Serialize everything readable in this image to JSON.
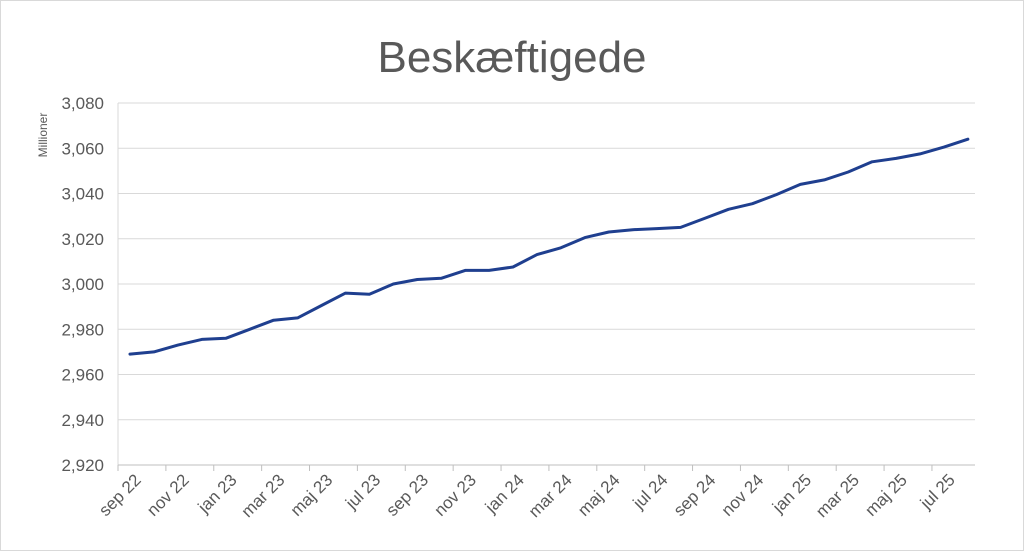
{
  "chart_data": {
    "type": "line",
    "title": "Beskæftigede",
    "ylabel": "Millioner",
    "xlabel": "",
    "ylim": [
      2920,
      3080
    ],
    "yticks": [
      2920,
      2940,
      2960,
      2980,
      3000,
      3020,
      3040,
      3060,
      3080
    ],
    "ytick_labels": [
      "2,920",
      "2,940",
      "2,960",
      "2,980",
      "3,000",
      "3,020",
      "3,040",
      "3,060",
      "3,080"
    ],
    "grid": true,
    "legend": "none",
    "line_color": "#1f3f8f",
    "x_labels": [
      "sep 22",
      "nov 22",
      "jan 23",
      "mar 23",
      "maj 23",
      "jul 23",
      "sep 23",
      "nov 23",
      "jan 24",
      "mar 24",
      "maj 24",
      "jul 24",
      "sep 24",
      "nov 24",
      "jan 25",
      "mar 25",
      "maj 25",
      "jul 25"
    ],
    "x": [
      "sep 22",
      "okt 22",
      "nov 22",
      "dec 22",
      "jan 23",
      "feb 23",
      "mar 23",
      "apr 23",
      "maj 23",
      "jun 23",
      "jul 23",
      "aug 23",
      "sep 23",
      "okt 23",
      "nov 23",
      "dec 23",
      "jan 24",
      "feb 24",
      "mar 24",
      "apr 24",
      "maj 24",
      "jun 24",
      "jul 24",
      "aug 24",
      "sep 24",
      "okt 24",
      "nov 24",
      "dec 24",
      "jan 25",
      "feb 25",
      "mar 25",
      "apr 25",
      "maj 25",
      "jun 25",
      "jul 25",
      "aug 25"
    ],
    "values": [
      2969,
      2970,
      2973,
      2975.5,
      2976,
      2980,
      2984,
      2985,
      2990.5,
      2996,
      2995.5,
      3000,
      3002,
      3002.5,
      3006,
      3006,
      3007.5,
      3013,
      3016,
      3020.5,
      3023,
      3024,
      3024.5,
      3025,
      3029,
      3033,
      3035.5,
      3039.5,
      3044,
      3046,
      3049.5,
      3054,
      3055.5,
      3057.5,
      3060.5,
      3064
    ]
  }
}
